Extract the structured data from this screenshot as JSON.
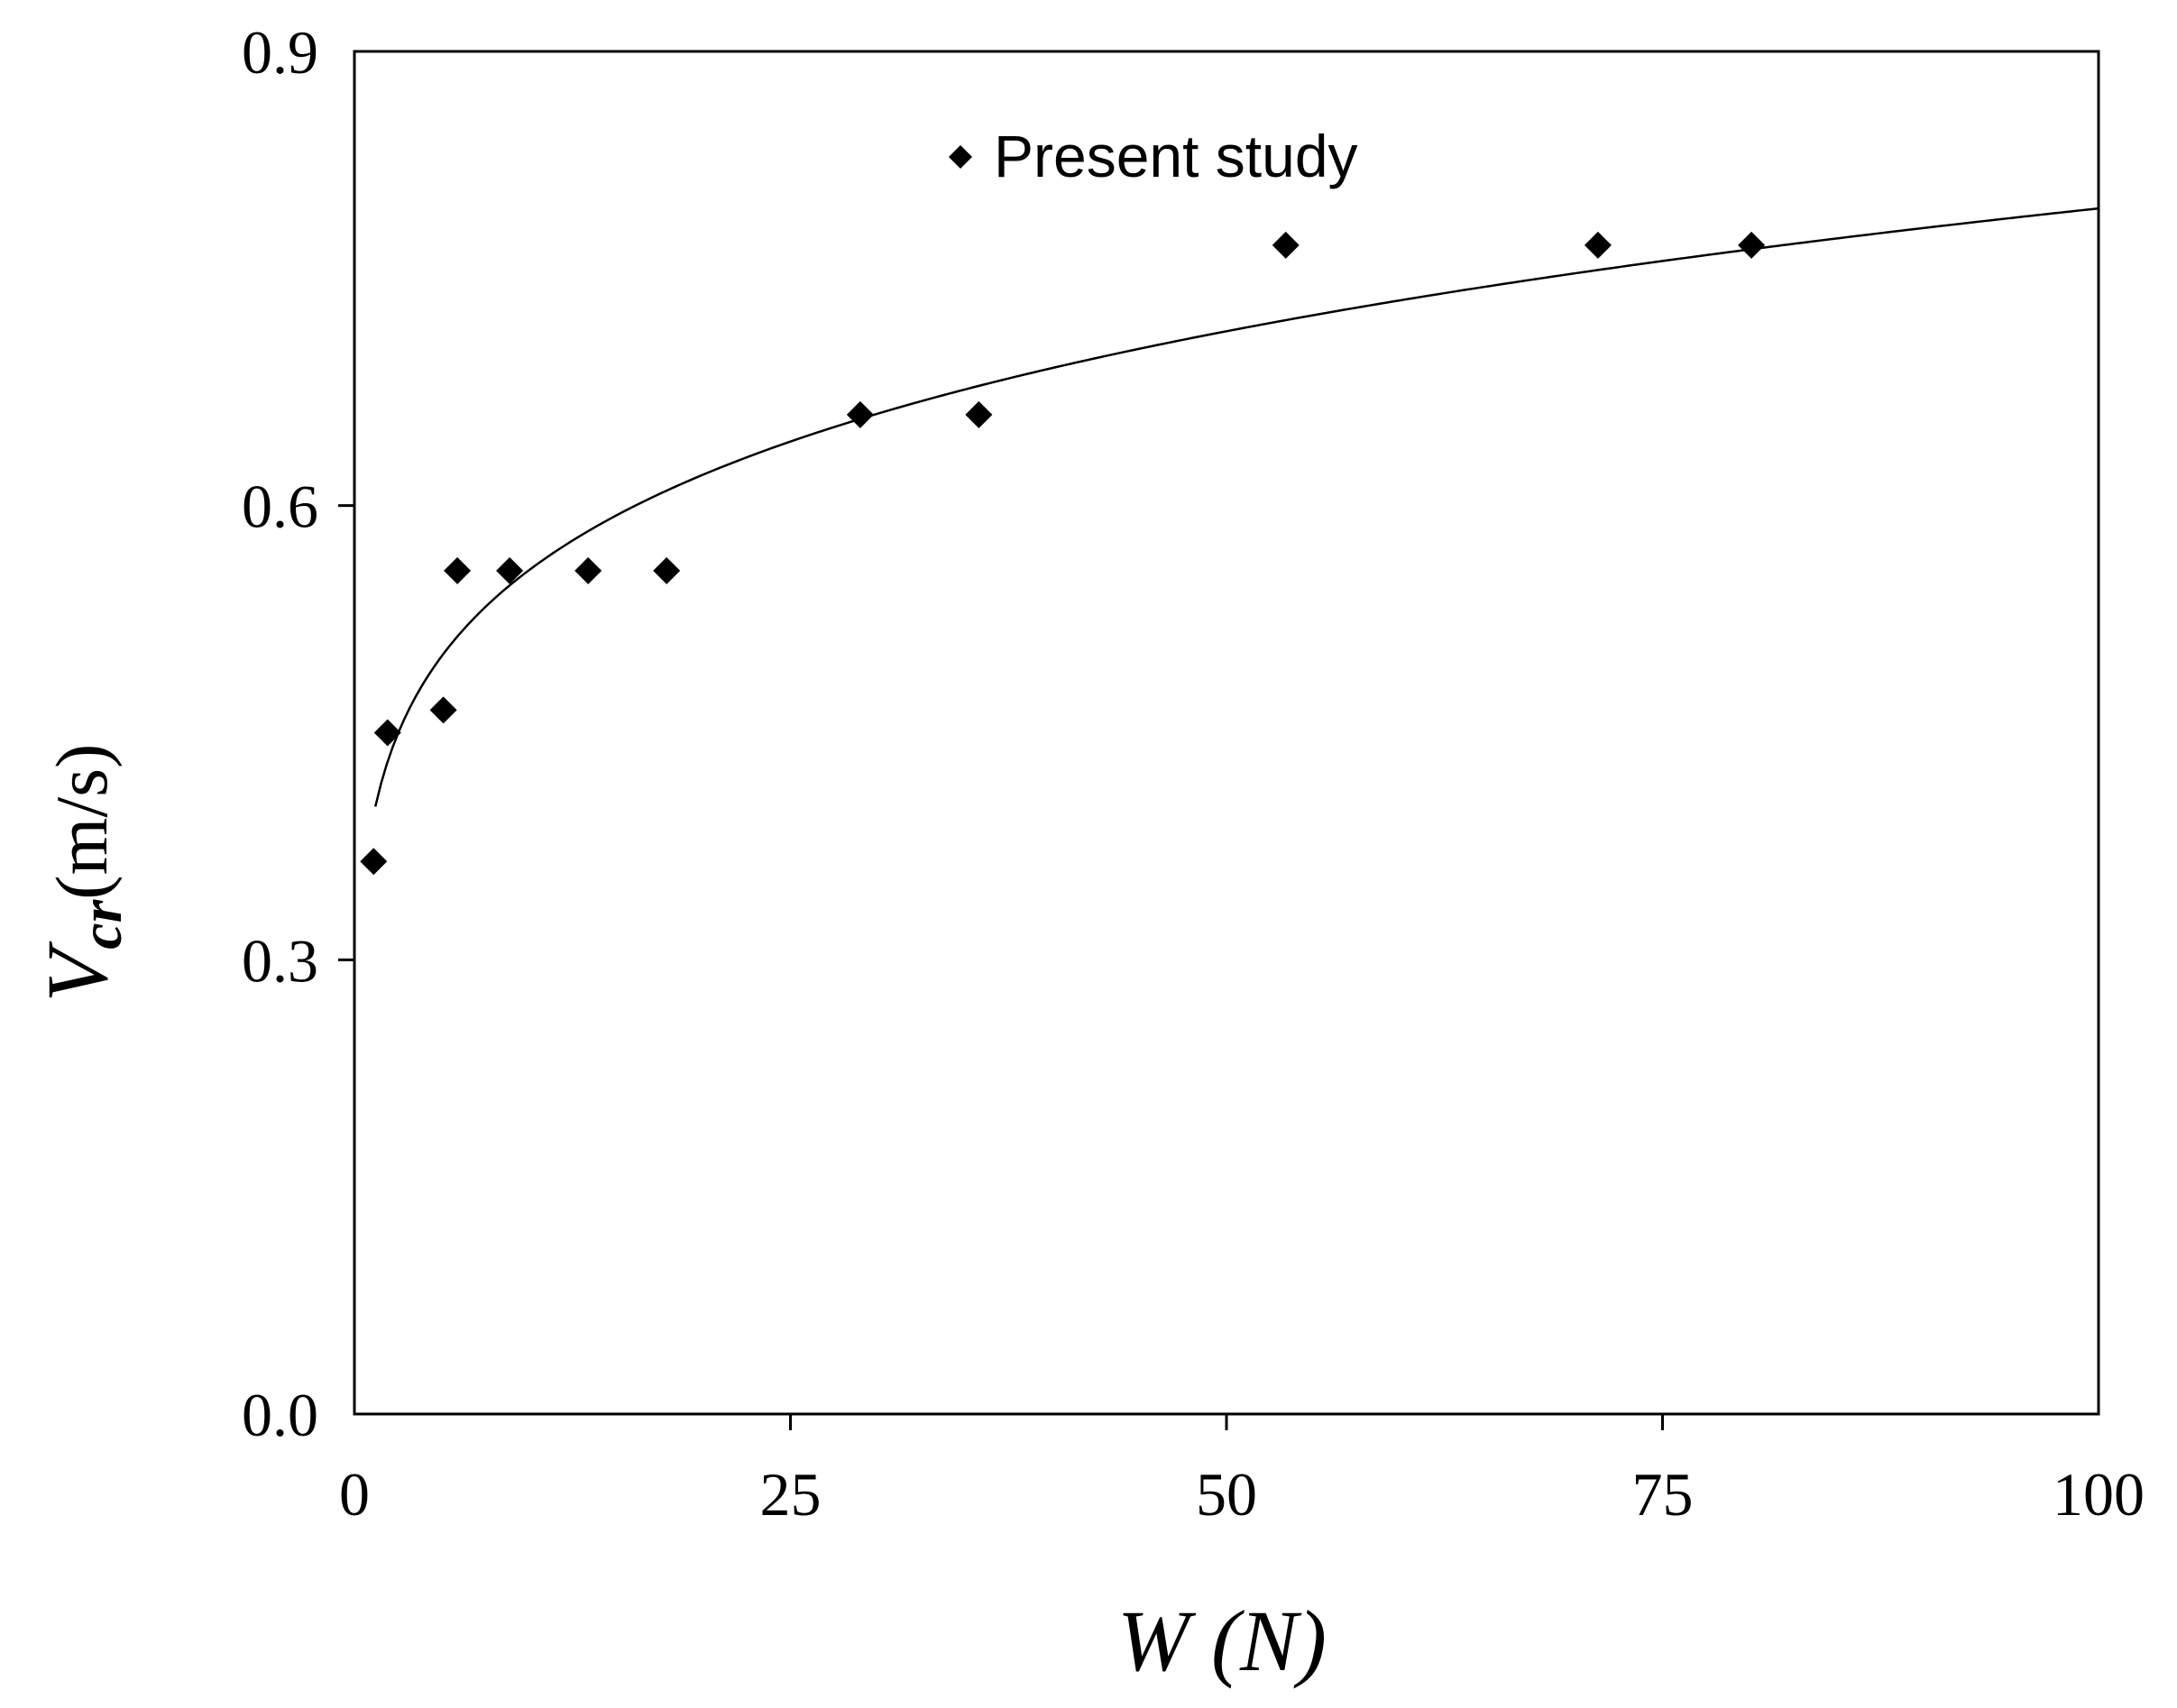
{
  "chart_data": {
    "type": "scatter",
    "x_ticks": [
      "0",
      "25",
      "50",
      "75",
      "100"
    ],
    "y_ticks": [
      "0.0",
      "0.3",
      "0.6",
      "0.9"
    ],
    "xlim": [
      0,
      100
    ],
    "ylim": [
      0,
      0.9
    ],
    "xlabel": "W (N)",
    "ylabel": "Vcr (m/s)",
    "ylabel_parts": {
      "main": "V",
      "sub": "cr",
      "unit": "(m/s)"
    },
    "grid": false,
    "legend_position": "top-center",
    "series": [
      {
        "name": "Present study",
        "marker": "diamond",
        "color": "#000000",
        "points": [
          {
            "x": 1.1,
            "y": 0.365
          },
          {
            "x": 1.9,
            "y": 0.45
          },
          {
            "x": 5.1,
            "y": 0.465
          },
          {
            "x": 5.9,
            "y": 0.557
          },
          {
            "x": 8.9,
            "y": 0.557
          },
          {
            "x": 13.4,
            "y": 0.557
          },
          {
            "x": 17.9,
            "y": 0.557
          },
          {
            "x": 29.0,
            "y": 0.66
          },
          {
            "x": 35.8,
            "y": 0.66
          },
          {
            "x": 53.4,
            "y": 0.772
          },
          {
            "x": 71.3,
            "y": 0.772
          },
          {
            "x": 80.1,
            "y": 0.772
          }
        ]
      }
    ],
    "fit_curve": {
      "type": "power",
      "coefficient": 0.39,
      "exponent": 0.155,
      "x_range": [
        1.2,
        100
      ],
      "color": "#000000"
    }
  }
}
